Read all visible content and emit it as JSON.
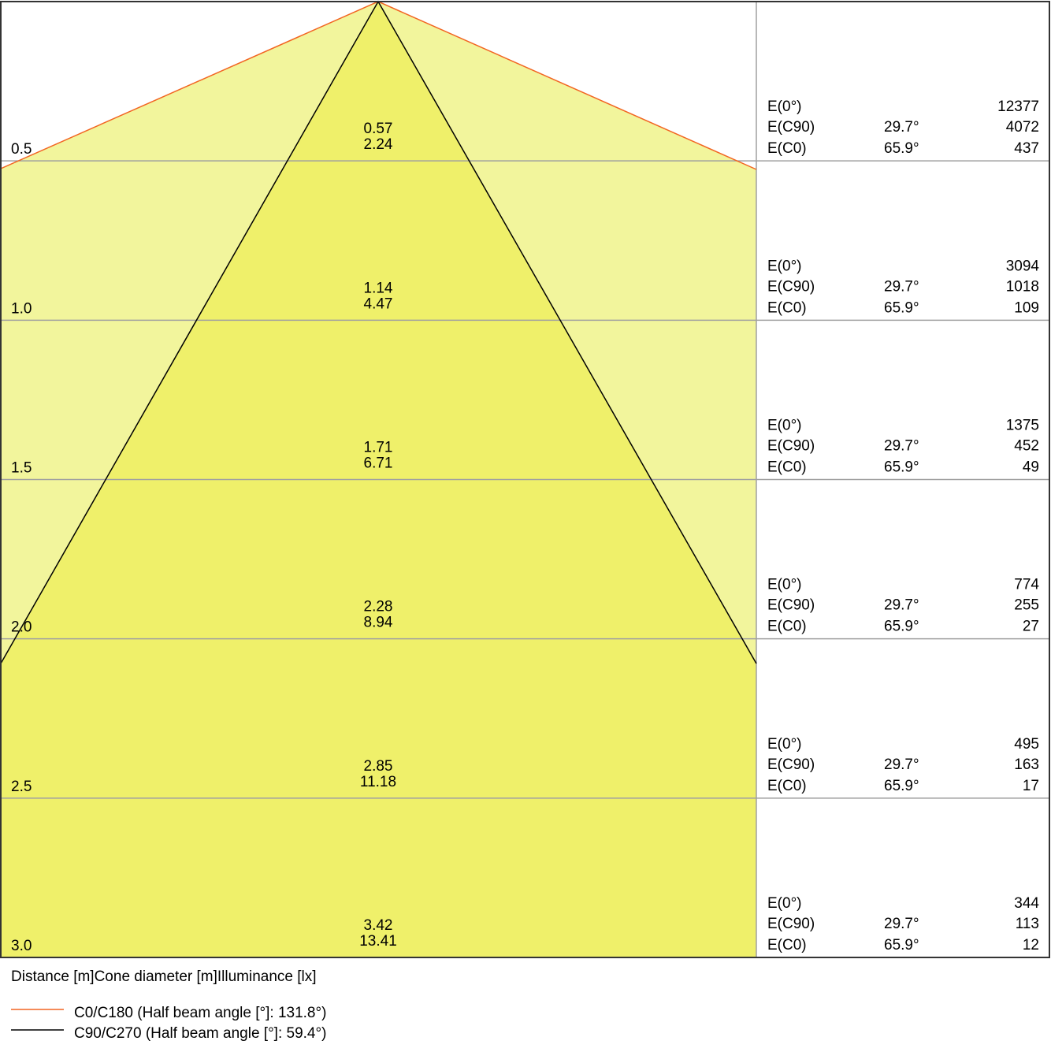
{
  "chart_data": {
    "type": "cone-diagram",
    "rows": [
      {
        "distance": "0.5",
        "half_diameter": "0.57",
        "diameter": "2.24",
        "e0_label": "E(0°)",
        "e0": "12377",
        "ec90_label": "E(C90)",
        "ec90_angle": "29.7°",
        "ec90": "4072",
        "ec0_label": "E(C0)",
        "ec0_angle": "65.9°",
        "ec0": "437"
      },
      {
        "distance": "1.0",
        "half_diameter": "1.14",
        "diameter": "4.47",
        "e0_label": "E(0°)",
        "e0": "3094",
        "ec90_label": "E(C90)",
        "ec90_angle": "29.7°",
        "ec90": "1018",
        "ec0_label": "E(C0)",
        "ec0_angle": "65.9°",
        "ec0": "109"
      },
      {
        "distance": "1.5",
        "half_diameter": "1.71",
        "diameter": "6.71",
        "e0_label": "E(0°)",
        "e0": "1375",
        "ec90_label": "E(C90)",
        "ec90_angle": "29.7°",
        "ec90": "452",
        "ec0_label": "E(C0)",
        "ec0_angle": "65.9°",
        "ec0": "49"
      },
      {
        "distance": "2.0",
        "half_diameter": "2.28",
        "diameter": "8.94",
        "e0_label": "E(0°)",
        "e0": "774",
        "ec90_label": "E(C90)",
        "ec90_angle": "29.7°",
        "ec90": "255",
        "ec0_label": "E(C0)",
        "ec0_angle": "65.9°",
        "ec0": "27"
      },
      {
        "distance": "2.5",
        "half_diameter": "2.85",
        "diameter": "11.18",
        "e0_label": "E(0°)",
        "e0": "495",
        "ec90_label": "E(C90)",
        "ec90_angle": "29.7°",
        "ec90": "163",
        "ec0_label": "E(C0)",
        "ec0_angle": "65.9°",
        "ec0": "17"
      },
      {
        "distance": "3.0",
        "half_diameter": "3.42",
        "diameter": "13.41",
        "e0_label": "E(0°)",
        "e0": "344",
        "ec90_label": "E(C90)",
        "ec90_angle": "29.7°",
        "ec90": "113",
        "ec0_label": "E(C0)",
        "ec0_angle": "65.9°",
        "ec0": "12"
      }
    ],
    "header_caption": "Distance [m]Cone diameter [m]Illuminance [lx]",
    "legend": [
      {
        "name": "C0/C180 (Half beam angle [°]: 131.8°)",
        "color": "#f26522",
        "half_beam_angle": 131.8
      },
      {
        "name": "C90/C270 (Half beam angle [°]: 59.4°)",
        "color": "#000000",
        "half_beam_angle": 59.4
      }
    ],
    "colors": {
      "wide_cone_fill": "#f2f59c",
      "narrow_cone_fill": "#eff06a",
      "grid": "#a0a0a0",
      "frame": "#333333"
    }
  }
}
